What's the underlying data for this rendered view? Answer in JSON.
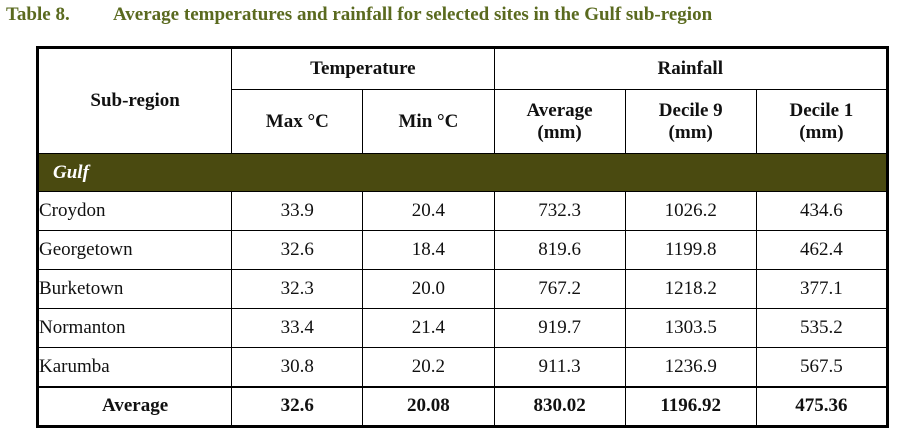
{
  "caption": {
    "number": "Table 8.",
    "title": "Average temperatures and rainfall for selected sites in the Gulf sub-region"
  },
  "headers": {
    "subregion": "Sub-region",
    "temperature": "Temperature",
    "rainfall": "Rainfall",
    "max": "Max °C",
    "min": "Min °C",
    "average": [
      "Average",
      "(mm)"
    ],
    "decile9": [
      "Decile 9",
      "(mm)"
    ],
    "decile1": [
      "Decile 1",
      "(mm)"
    ]
  },
  "group": "Gulf",
  "rows": [
    {
      "site": "Croydon",
      "values": [
        "33.9",
        "20.4",
        "732.3",
        "1026.2",
        "434.6"
      ]
    },
    {
      "site": "Georgetown",
      "values": [
        "32.6",
        "18.4",
        "819.6",
        "1199.8",
        "462.4"
      ]
    },
    {
      "site": "Burketown",
      "values": [
        "32.3",
        "20.0",
        "767.2",
        "1218.2",
        "377.1"
      ]
    },
    {
      "site": "Normanton",
      "values": [
        "33.4",
        "21.4",
        "919.7",
        "1303.5",
        "535.2"
      ]
    },
    {
      "site": "Karumba",
      "values": [
        "30.8",
        "20.2",
        "911.3",
        "1236.9",
        "567.5"
      ]
    }
  ],
  "average": {
    "label": "Average",
    "values": [
      "32.6",
      "20.08",
      "830.02",
      "1196.92",
      "475.36"
    ]
  }
}
